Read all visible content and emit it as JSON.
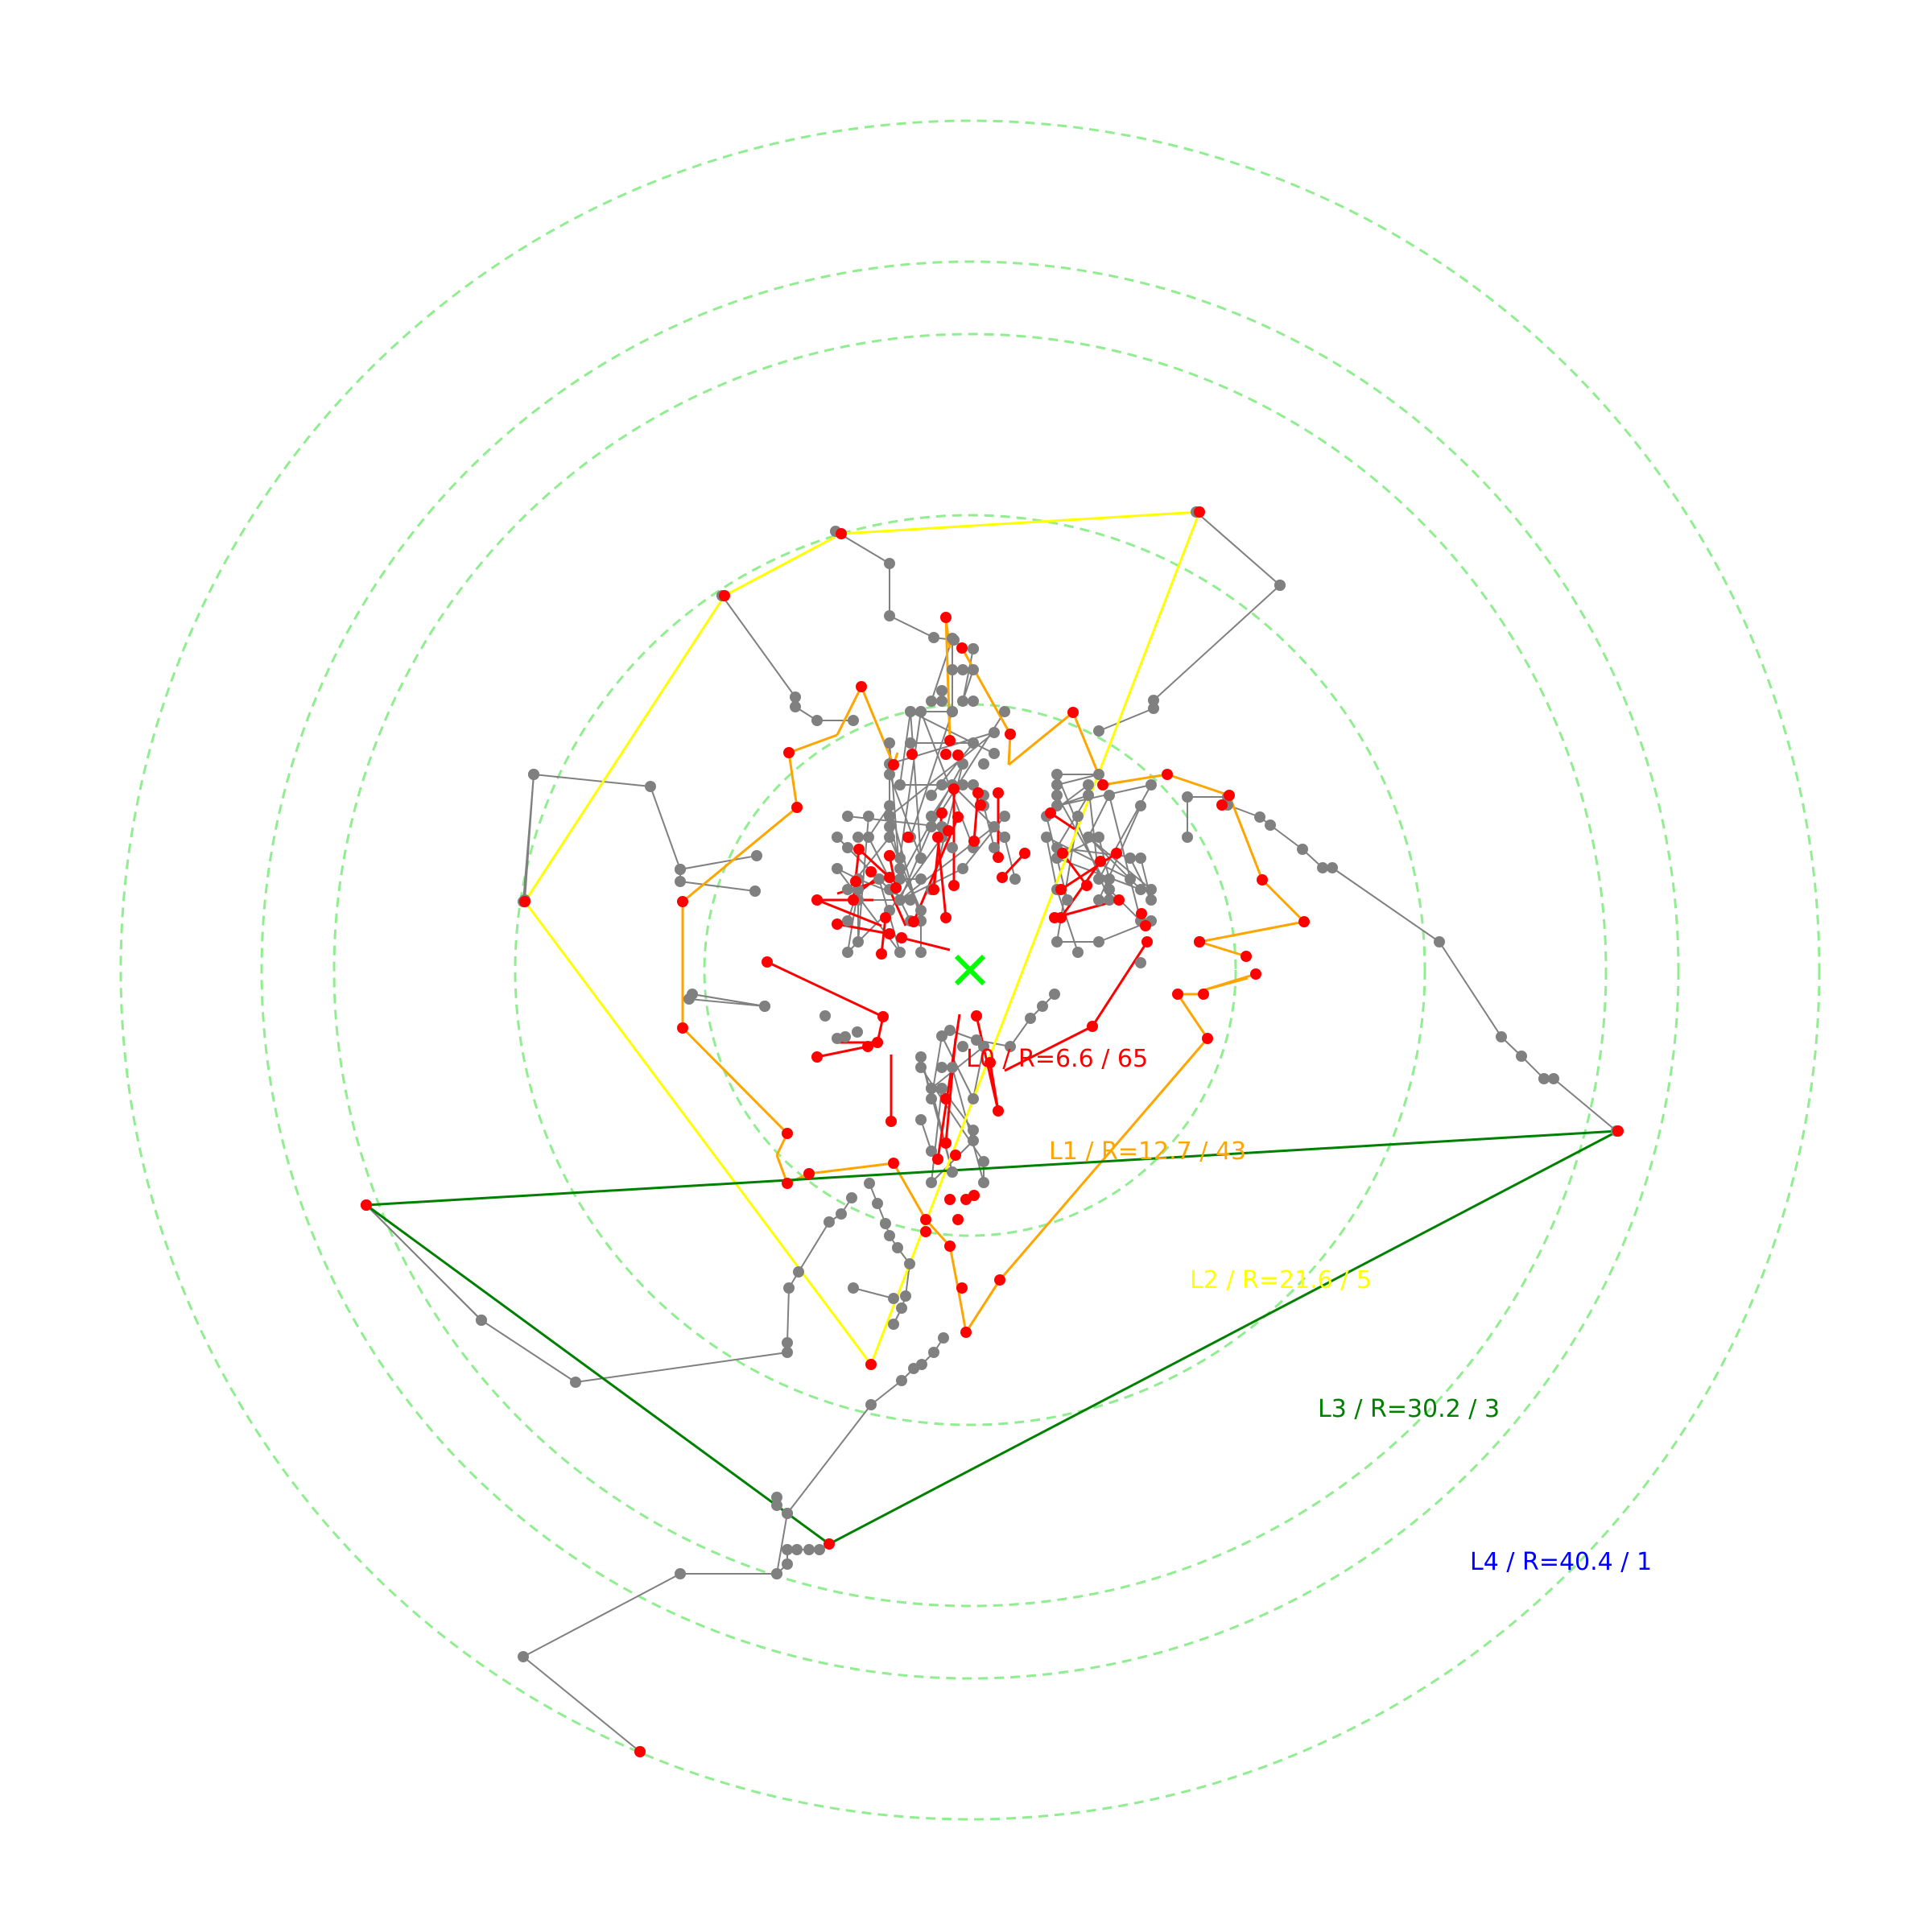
{
  "colors": {
    "circle": "#90ee90",
    "center": "#00ff00",
    "node_gray": "#808080",
    "node_red": "#ff0000",
    "edge_gray": "#808080"
  },
  "levels": [
    {
      "text": "L0 / R=6.6 / 65",
      "color": "#ff0000",
      "radius": 6.6,
      "count": 65
    },
    {
      "text": "L1 / R=12.7 / 43",
      "color": "#ffa500",
      "radius": 12.7,
      "count": 43
    },
    {
      "text": "L2 / R=21.6 / 5",
      "color": "#ffff00",
      "radius": 21.6,
      "count": 5
    },
    {
      "text": "L3 / R=30.2 / 3",
      "color": "#008000",
      "radius": 30.2,
      "count": 3
    },
    {
      "text": "L4 / R=40.4 / 1",
      "color": "#0000ff",
      "radius": 40.4,
      "count": 1
    }
  ],
  "center_marker": "x-mark"
}
